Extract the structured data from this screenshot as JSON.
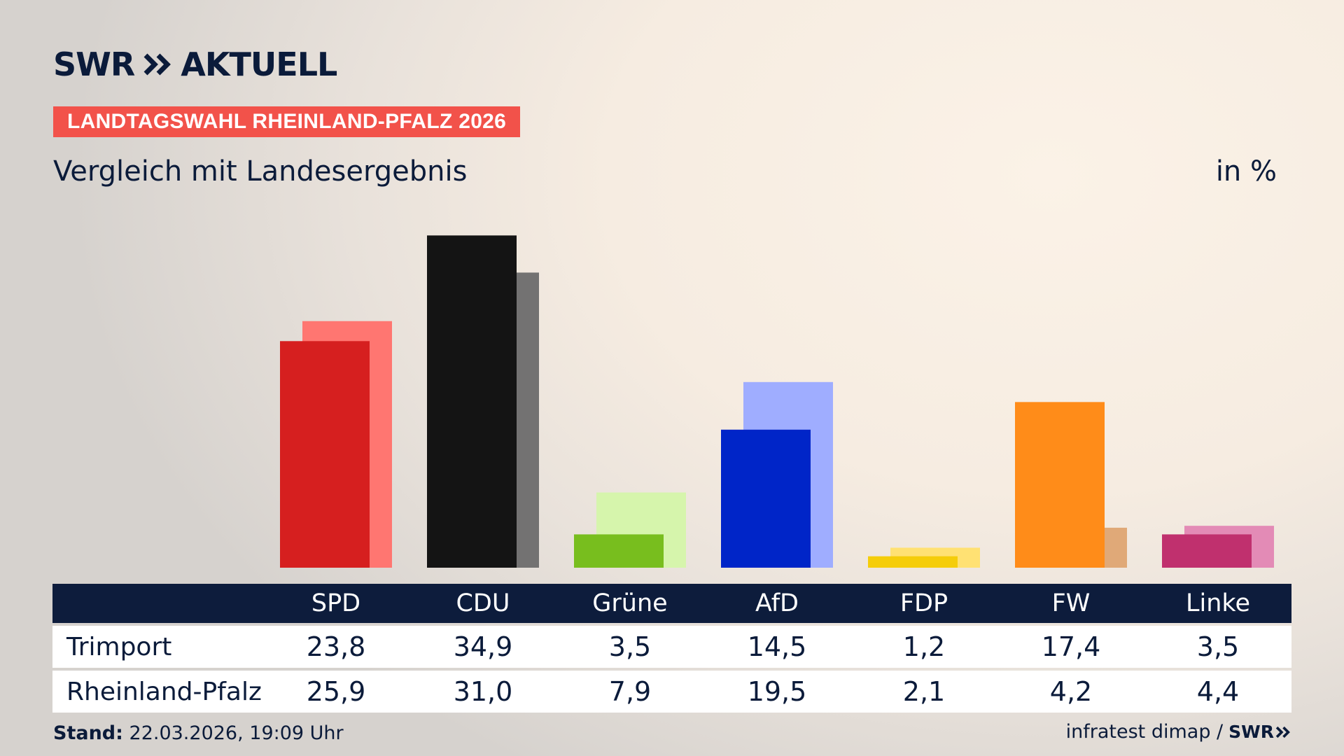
{
  "header": {
    "brand": "SWR",
    "brand_suffix": "AKTUELL",
    "badge": "LANDTAGSWAHL RHEINLAND-PFALZ 2026",
    "subtitle": "Vergleich mit Landesergebnis",
    "unit": "in %"
  },
  "table": {
    "row1_label": "Trimport",
    "row2_label": "Rheinland-Pfalz",
    "row1_values": [
      "23,8",
      "34,9",
      "3,5",
      "14,5",
      "1,2",
      "17,4",
      "3,5"
    ],
    "row2_values": [
      "25,9",
      "31,0",
      "7,9",
      "19,5",
      "2,1",
      "4,2",
      "4,4"
    ]
  },
  "footer": {
    "stand_label": "Stand:",
    "stand_value": "22.03.2026, 19:09 Uhr",
    "source": "infratest dimap /",
    "source_brand": "SWR"
  },
  "chart_data": {
    "type": "bar",
    "categories": [
      "SPD",
      "CDU",
      "Grüne",
      "AfD",
      "FDP",
      "FW",
      "Linke"
    ],
    "series": [
      {
        "name": "Trimport",
        "values": [
          23.8,
          34.9,
          3.5,
          14.5,
          1.2,
          17.4,
          3.5
        ]
      },
      {
        "name": "Rheinland-Pfalz",
        "values": [
          25.9,
          31.0,
          7.9,
          19.5,
          2.1,
          4.2,
          4.4
        ]
      }
    ],
    "colors_primary": [
      "#d61f1f",
      "#141414",
      "#78be1e",
      "#0025c8",
      "#f5cd0a",
      "#ff8c19",
      "#c0306e"
    ],
    "colors_secondary": [
      "#ff7671",
      "#737272",
      "#d6f5ac",
      "#9fadff",
      "#ffe173",
      "#e0a978",
      "#e38bb6"
    ],
    "ylim": [
      0,
      40
    ],
    "grid": false,
    "legend": "table-below"
  }
}
